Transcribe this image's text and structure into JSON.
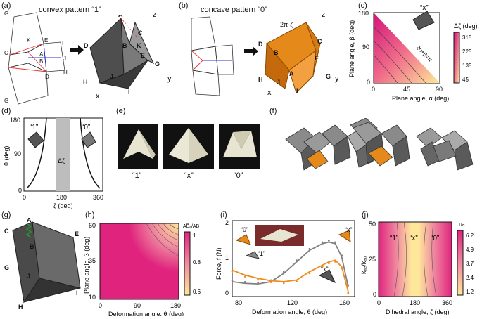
{
  "panels": {
    "a": {
      "label": "(a)",
      "title": "convex pattern “1”",
      "crease_labels": [
        "G",
        "C",
        "K",
        "E",
        "I",
        "A",
        "B",
        "J",
        "D",
        "H",
        "G",
        "a",
        "b",
        "b",
        "q",
        "q",
        "q",
        "a",
        "α",
        "β",
        "q",
        "θ"
      ],
      "axes": {
        "z": "z",
        "x": "x",
        "y": "y"
      },
      "vertex_labels": [
        "A",
        "C",
        "K",
        "D",
        "B",
        "E",
        "J",
        "G",
        "H",
        "I",
        "α",
        "β",
        "θ"
      ]
    },
    "b": {
      "label": "(b)",
      "title": "concave pattern “0”",
      "angle_label": "2π-ζ",
      "vertex_labels": [
        "C",
        "B",
        "E",
        "D",
        "A",
        "J",
        "H",
        "I",
        "G"
      ],
      "axes": {
        "z": "z",
        "x": "x",
        "y": "y"
      }
    },
    "c": {
      "label": "(c)",
      "badge": "“x”",
      "constraint": "2α+β=π",
      "cbar_title": "Δζ (deg)",
      "cbar_ticks": [
        "315",
        "225",
        "135",
        "45"
      ],
      "xlabel": "Plane angle, α (deg)",
      "ylabel": "Plane angle, β (deg)",
      "xticks": [
        "0",
        "45",
        "90"
      ],
      "yticks": [
        "180",
        "90",
        "0"
      ]
    },
    "d": {
      "label": "(d)",
      "ylabel": "θ (deg)",
      "xlabel": "ζ (deg)",
      "state_one": "“1”",
      "state_zero": "“0”",
      "band_label": "Δζ",
      "xticks": [
        "0",
        "180",
        "360"
      ],
      "yticks": [
        "180",
        "90",
        "0"
      ]
    },
    "e": {
      "label": "(e)",
      "captions": [
        "“1”",
        "“x”",
        "“0”"
      ]
    },
    "f": {
      "label": "(f)"
    },
    "g": {
      "label": "(g)",
      "vertex_labels": [
        "C",
        "A",
        "B",
        "G",
        "E",
        "J",
        "I",
        "H"
      ]
    },
    "h": {
      "label": "(h)",
      "cbar_title": "AB̅ₑ/AB",
      "cbar_ticks": [
        "1",
        "0.8",
        "0.6"
      ],
      "xlabel": "Deformation angle, θ (deg)",
      "ylabel": "Plane angle, β (deg)",
      "xticks": [
        "0",
        "90",
        "180"
      ],
      "yticks": [
        "60",
        "35",
        "10"
      ]
    },
    "i": {
      "label": "(i)",
      "xlabel": "Deformation angle, θ (deg)",
      "ylabel": "Force, f (N)",
      "xticks": [
        "80",
        "120",
        "160"
      ],
      "yticks": [
        "2",
        "1",
        "0"
      ],
      "tags": [
        "“0”",
        "“1”",
        "“x”",
        "“x”"
      ]
    },
    "j": {
      "label": "(j)",
      "xlabel": "Dihedral angle, ζ (deg)",
      "ylabel": "kₐₑ/kₑᵤ",
      "cbar_title": "uₙ",
      "cbar_ticks": [
        "6.2",
        "4.9",
        "3.7",
        "2.4",
        "1.2"
      ],
      "xticks": [
        "0",
        "180",
        "360"
      ],
      "yticks": [
        "50",
        "25",
        "0"
      ],
      "states": [
        "“1”",
        "“x”",
        "“0”"
      ]
    }
  },
  "chart_data": [
    {
      "panel": "i",
      "type": "line",
      "x": [
        70,
        80,
        90,
        100,
        110,
        120,
        130,
        140,
        145,
        150,
        155,
        160
      ],
      "series": [
        {
          "color": "#808080",
          "values": [
            0.35,
            0.3,
            0.28,
            0.35,
            0.6,
            0.95,
            1.3,
            1.5,
            1.55,
            1.5,
            1.1,
            0.2
          ]
        },
        {
          "color": "#f08a1c",
          "values": [
            0.7,
            0.55,
            0.45,
            0.38,
            0.35,
            0.4,
            0.65,
            0.85,
            0.95,
            1.0,
            0.8,
            0.05
          ]
        }
      ],
      "xlim": [
        70,
        165
      ],
      "ylim": [
        -0.1,
        2.2
      ]
    }
  ]
}
